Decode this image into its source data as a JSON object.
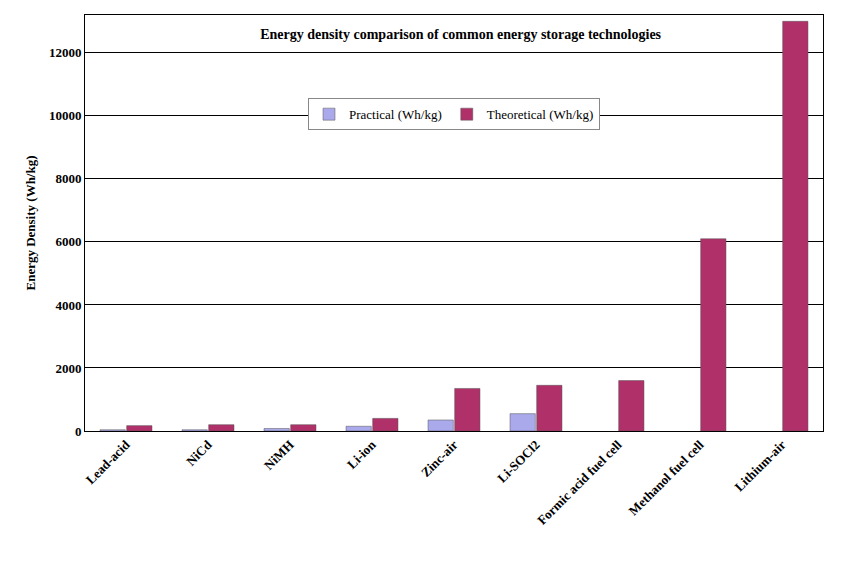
{
  "chart_data": {
    "type": "bar",
    "title": "Energy density comparison of common energy storage technologies",
    "y_label": "Energy Density (Wh/kg)",
    "categories": [
      "Lead-acid",
      "NiCd",
      "NiMH",
      "Li-ion",
      "Zinc-air",
      "Li-SOCl2",
      "Formic acid fuel cell",
      "Methanol fuel cell",
      "Lithium-air"
    ],
    "series": [
      {
        "name": "Practical (Wh/kg)",
        "color": "#a9a9ec",
        "values": [
          40,
          40,
          80,
          150,
          350,
          550,
          null,
          null,
          null
        ]
      },
      {
        "name": "Theoretical (Wh/kg)",
        "color": "#b0306a",
        "values": [
          170,
          200,
          200,
          400,
          1350,
          1450,
          1600,
          6100,
          13000
        ]
      }
    ],
    "ylim": [
      0,
      13200
    ],
    "yticks": [
      0,
      2000,
      4000,
      6000,
      8000,
      10000,
      12000
    ],
    "grid": true,
    "legend": "top"
  }
}
